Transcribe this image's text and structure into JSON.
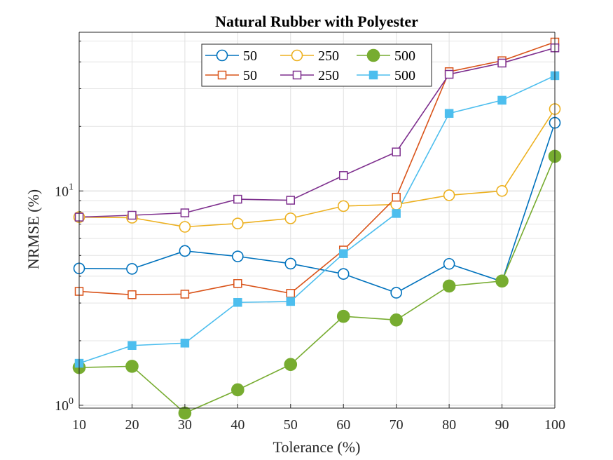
{
  "chart_data": {
    "type": "line",
    "title": "Natural Rubber with Polyester",
    "xlabel": "Tolerance (%)",
    "ylabel": "NRMSE (%)",
    "x": [
      10,
      20,
      30,
      40,
      50,
      60,
      70,
      80,
      90,
      100
    ],
    "xlim": [
      10,
      100
    ],
    "ylim": [
      0.97,
      55
    ],
    "yscale": "log",
    "grid": true,
    "legend": {
      "placement": "top-center",
      "columns": 3
    },
    "x_tick_labels": [
      "10",
      "20",
      "30",
      "40",
      "50",
      "60",
      "70",
      "80",
      "90",
      "100"
    ],
    "y_tick_labels": [
      {
        "value": 1,
        "base": "10",
        "exp": "0"
      },
      {
        "value": 10,
        "base": "10",
        "exp": "1"
      }
    ],
    "series": [
      {
        "name": "50",
        "color": "#0072BD",
        "marker": "circle",
        "filled": false,
        "values": [
          4.35,
          4.33,
          5.25,
          4.95,
          4.58,
          4.1,
          3.35,
          4.57,
          3.78,
          20.8
        ]
      },
      {
        "name": "250",
        "color": "#EDB120",
        "marker": "circle",
        "filled": false,
        "values": [
          7.55,
          7.5,
          6.8,
          7.05,
          7.45,
          8.5,
          8.65,
          9.55,
          10.0,
          24.1
        ]
      },
      {
        "name": "500",
        "color": "#77AC30",
        "marker": "circle",
        "filled": true,
        "values": [
          1.5,
          1.52,
          0.92,
          1.18,
          1.55,
          2.6,
          2.5,
          3.6,
          3.8,
          14.5
        ]
      },
      {
        "name": "50",
        "color": "#D95319",
        "marker": "square",
        "filled": false,
        "values": [
          3.4,
          3.28,
          3.3,
          3.7,
          3.33,
          5.3,
          9.35,
          36.0,
          40.5,
          49.5
        ]
      },
      {
        "name": "250",
        "color": "#7E2F8E",
        "marker": "square",
        "filled": false,
        "values": [
          7.55,
          7.7,
          7.9,
          9.15,
          9.05,
          11.8,
          15.2,
          35.0,
          39.5,
          46.5
        ]
      },
      {
        "name": "500",
        "color": "#4DBEEE",
        "marker": "square",
        "filled": true,
        "values": [
          1.57,
          1.9,
          1.95,
          3.02,
          3.05,
          5.1,
          7.85,
          23.0,
          26.5,
          34.5
        ]
      }
    ]
  }
}
